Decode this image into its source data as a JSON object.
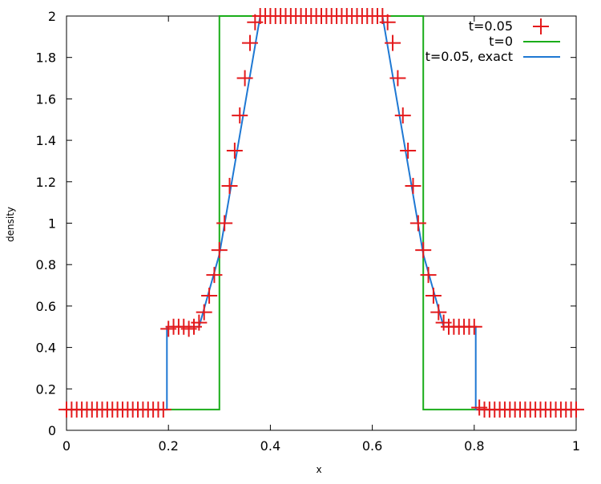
{
  "chart_data": {
    "type": "line",
    "xlabel": "x",
    "ylabel": "density",
    "xlim": [
      0,
      1
    ],
    "ylim": [
      0,
      2
    ],
    "x_ticks": [
      "0",
      "0.2",
      "0.4",
      "0.6",
      "0.8",
      "1"
    ],
    "y_ticks": [
      "0",
      "0.2",
      "0.4",
      "0.6",
      "0.8",
      "1",
      "1.2",
      "1.4",
      "1.6",
      "1.8",
      "2"
    ],
    "grid": false,
    "legend_position": "top-right",
    "colors": {
      "t005": "#e41a1c",
      "t0": "#1aad19",
      "exact": "#1e78d3"
    },
    "series": [
      {
        "name": "t=0.05",
        "style": "points-plus",
        "x": [
          0.0,
          0.01,
          0.02,
          0.03,
          0.04,
          0.05,
          0.06,
          0.07,
          0.08,
          0.09,
          0.1,
          0.11,
          0.12,
          0.13,
          0.14,
          0.15,
          0.16,
          0.17,
          0.18,
          0.19,
          0.2,
          0.21,
          0.22,
          0.23,
          0.24,
          0.25,
          0.26,
          0.27,
          0.28,
          0.29,
          0.3,
          0.31,
          0.32,
          0.33,
          0.34,
          0.35,
          0.36,
          0.37,
          0.38,
          0.39,
          0.4,
          0.41,
          0.42,
          0.43,
          0.44,
          0.45,
          0.46,
          0.47,
          0.48,
          0.49,
          0.5,
          0.51,
          0.52,
          0.53,
          0.54,
          0.55,
          0.56,
          0.57,
          0.58,
          0.59,
          0.6,
          0.61,
          0.62,
          0.63,
          0.64,
          0.65,
          0.66,
          0.67,
          0.68,
          0.69,
          0.7,
          0.71,
          0.72,
          0.73,
          0.74,
          0.75,
          0.76,
          0.77,
          0.78,
          0.79,
          0.8,
          0.81,
          0.82,
          0.83,
          0.84,
          0.85,
          0.86,
          0.87,
          0.88,
          0.89,
          0.9,
          0.91,
          0.92,
          0.93,
          0.94,
          0.95,
          0.96,
          0.97,
          0.98,
          0.99,
          1.0
        ],
        "y": [
          0.1,
          0.1,
          0.1,
          0.1,
          0.1,
          0.1,
          0.1,
          0.1,
          0.1,
          0.1,
          0.1,
          0.1,
          0.1,
          0.1,
          0.1,
          0.1,
          0.1,
          0.1,
          0.1,
          0.1,
          0.49,
          0.5,
          0.5,
          0.5,
          0.49,
          0.5,
          0.52,
          0.57,
          0.65,
          0.75,
          0.87,
          1.0,
          1.18,
          1.35,
          1.52,
          1.7,
          1.87,
          1.97,
          2.0,
          2.0,
          2.0,
          2.0,
          2.0,
          2.0,
          2.0,
          2.0,
          2.0,
          2.0,
          2.0,
          2.0,
          2.0,
          2.0,
          2.0,
          2.0,
          2.0,
          2.0,
          2.0,
          2.0,
          2.0,
          2.0,
          2.0,
          2.0,
          2.0,
          1.97,
          1.87,
          1.7,
          1.52,
          1.35,
          1.18,
          1.0,
          0.87,
          0.75,
          0.65,
          0.57,
          0.52,
          0.5,
          0.5,
          0.5,
          0.5,
          0.5,
          0.5,
          0.11,
          0.1,
          0.1,
          0.1,
          0.1,
          0.1,
          0.1,
          0.1,
          0.1,
          0.1,
          0.1,
          0.1,
          0.1,
          0.1,
          0.1,
          0.1,
          0.1,
          0.1,
          0.1,
          0.1
        ]
      },
      {
        "name": "t=0",
        "style": "line",
        "x": [
          0,
          0.3,
          0.3,
          0.7,
          0.7,
          1
        ],
        "y": [
          0.1,
          0.1,
          2.0,
          2.0,
          0.1,
          0.1
        ]
      },
      {
        "name": "t=0.05, exact",
        "style": "line",
        "x": [
          0,
          0.197,
          0.197,
          0.26,
          0.3,
          0.38,
          0.62,
          0.7,
          0.74,
          0.803,
          0.803,
          1
        ],
        "y": [
          0.1,
          0.1,
          0.5,
          0.5,
          0.85,
          2.0,
          2.0,
          0.85,
          0.5,
          0.5,
          0.1,
          0.1
        ]
      }
    ]
  }
}
